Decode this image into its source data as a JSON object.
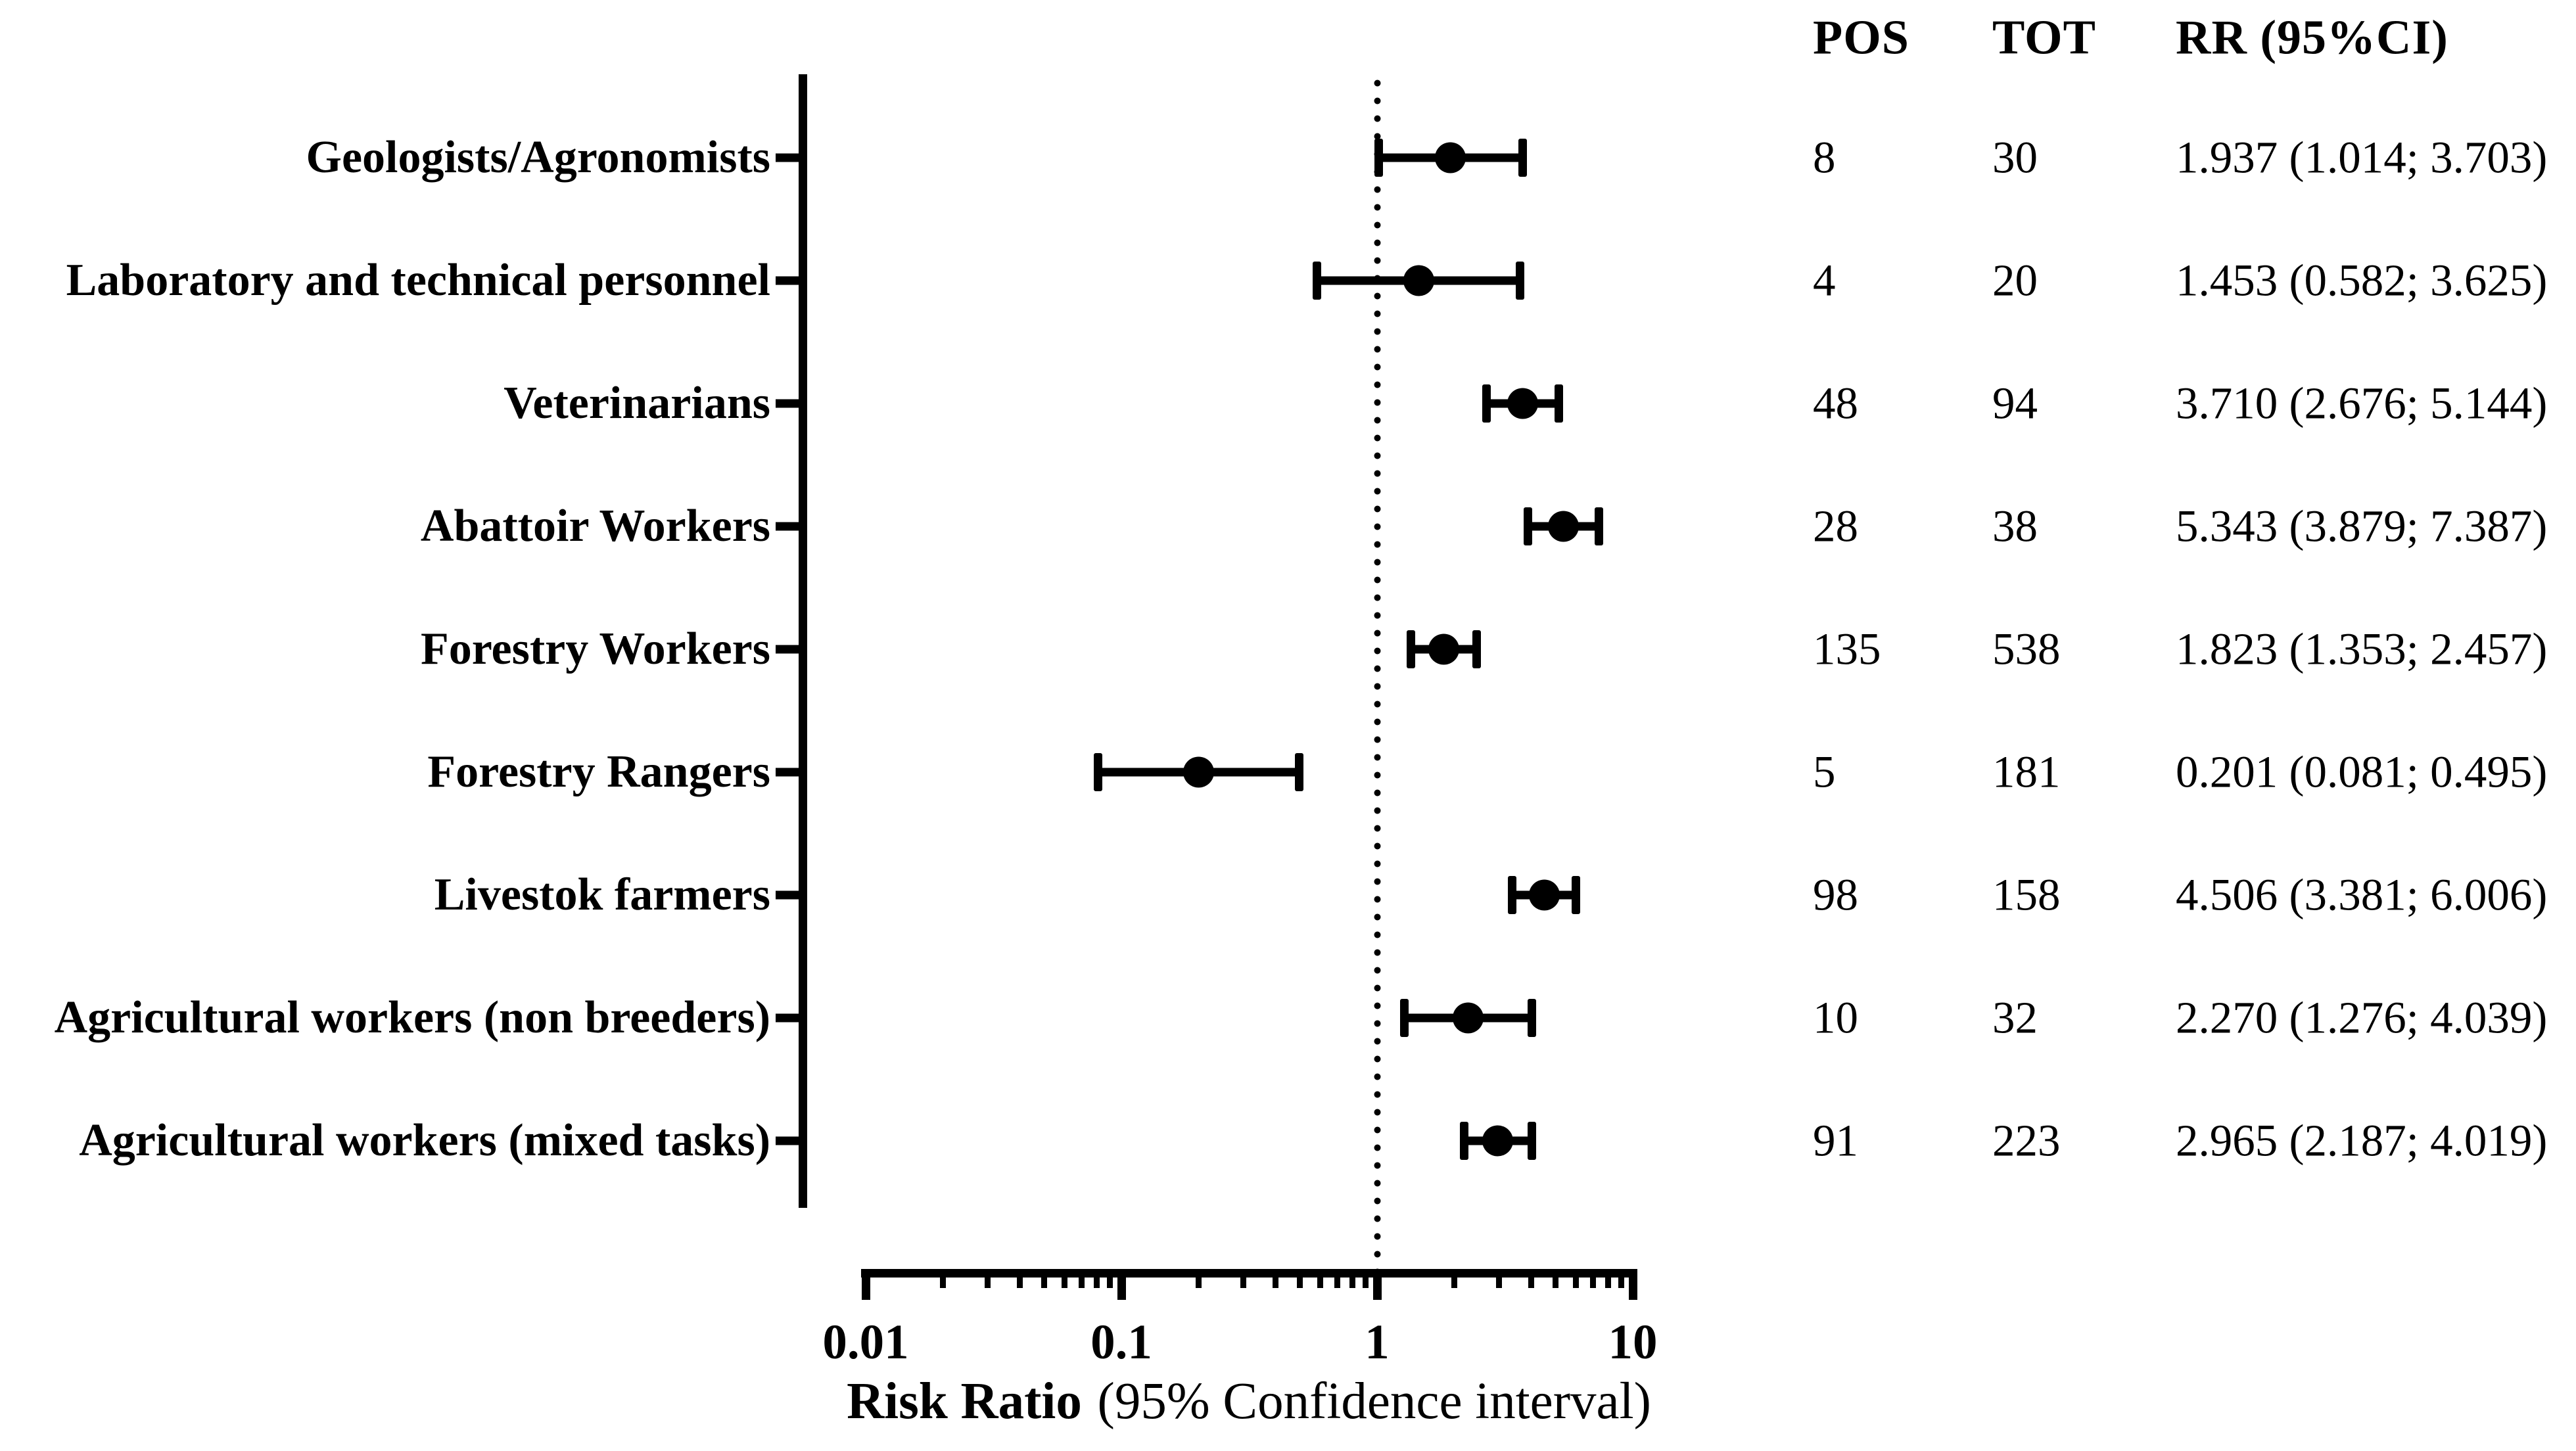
{
  "figure": {
    "background": "#ffffff",
    "ink": "#000000"
  },
  "table": {
    "headers": {
      "pos": "POS",
      "tot": "TOT",
      "rr_ci": "RR (95%CI)"
    }
  },
  "chart_data": {
    "type": "scatter",
    "subtype": "forest_plot",
    "title": "",
    "xlabel_bold": "Risk Ratio",
    "xlabel_rest": "(95% Confidence interval)",
    "x_scale": "log10",
    "xlim": [
      0.01,
      10
    ],
    "x_ticks": [
      0.01,
      0.1,
      1,
      10
    ],
    "x_tick_labels": [
      "0.01",
      "0.1",
      "1",
      "10"
    ],
    "reference_line_x": 1,
    "legend": "none",
    "grid": false,
    "columns": [
      "POS",
      "TOT",
      "RR (95%CI)"
    ],
    "rows": [
      {
        "label": "Geologists/Agronomists",
        "pos": "8",
        "tot": "30",
        "rr": 1.937,
        "lo": 1.014,
        "hi": 3.703,
        "rr_ci": "1.937 (1.014; 3.703)"
      },
      {
        "label": "Laboratory and technical personnel",
        "pos": "4",
        "tot": "20",
        "rr": 1.453,
        "lo": 0.582,
        "hi": 3.625,
        "rr_ci": "1.453 (0.582; 3.625)"
      },
      {
        "label": "Veterinarians",
        "pos": "48",
        "tot": "94",
        "rr": 3.71,
        "lo": 2.676,
        "hi": 5.144,
        "rr_ci": "3.710 (2.676; 5.144)"
      },
      {
        "label": "Abattoir Workers",
        "pos": "28",
        "tot": "38",
        "rr": 5.343,
        "lo": 3.879,
        "hi": 7.387,
        "rr_ci": "5.343 (3.879; 7.387)"
      },
      {
        "label": "Forestry Workers",
        "pos": "135",
        "tot": "538",
        "rr": 1.823,
        "lo": 1.353,
        "hi": 2.457,
        "rr_ci": "1.823 (1.353; 2.457)"
      },
      {
        "label": "Forestry Rangers",
        "pos": "5",
        "tot": "181",
        "rr": 0.201,
        "lo": 0.081,
        "hi": 0.495,
        "rr_ci": "0.201 (0.081; 0.495)"
      },
      {
        "label": "Livestok farmers",
        "pos": "98",
        "tot": "158",
        "rr": 4.506,
        "lo": 3.381,
        "hi": 6.006,
        "rr_ci": "4.506 (3.381; 6.006)"
      },
      {
        "label": "Agricultural workers (non breeders)",
        "pos": "10",
        "tot": "32",
        "rr": 2.27,
        "lo": 1.276,
        "hi": 4.039,
        "rr_ci": "2.270 (1.276; 4.039)"
      },
      {
        "label": "Agricultural workers (mixed tasks)",
        "pos": "91",
        "tot": "223",
        "rr": 2.965,
        "lo": 2.187,
        "hi": 4.019,
        "rr_ci": "2.965 (2.187; 4.019)"
      }
    ]
  }
}
